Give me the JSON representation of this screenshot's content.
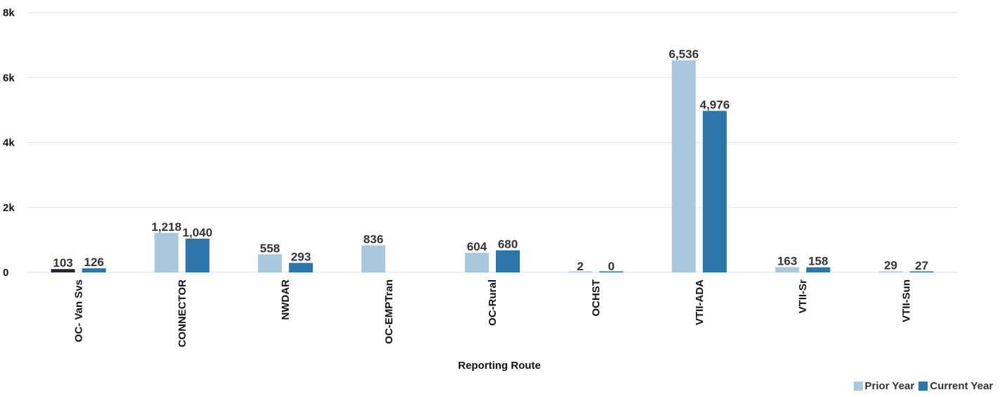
{
  "chart_data": {
    "type": "bar",
    "xlabel": "Reporting Route",
    "ylabel": "",
    "ylim": [
      0,
      8000
    ],
    "y_ticks": [
      0,
      2000,
      4000,
      6000,
      8000
    ],
    "y_tick_labels": [
      "0",
      "2k",
      "4k",
      "6k",
      "8k"
    ],
    "grid": true,
    "legend_position": "bottom-right",
    "categories": [
      "OC- Van Svs",
      "CONNECTOR",
      "NWDAR",
      "OC-EMPTran",
      "OC-Rural",
      "OCHST",
      "VTII-ADA",
      "VTII-Sr",
      "VTII-Sun"
    ],
    "series": [
      {
        "name": "Prior Year",
        "color": "#a9c8dd",
        "values": [
          103,
          1218,
          558,
          836,
          604,
          2,
          6536,
          163,
          29
        ],
        "labels": [
          "103",
          "1,218",
          "558",
          "836",
          "604",
          "2",
          "6,536",
          "163",
          "29"
        ]
      },
      {
        "name": "Current Year",
        "color": "#2b75aa",
        "values": [
          126,
          1040,
          293,
          null,
          680,
          0,
          4976,
          158,
          27
        ],
        "labels": [
          "126",
          "1,040",
          "293",
          "",
          "680",
          "0",
          "4,976",
          "158",
          "27"
        ]
      }
    ],
    "highlight_color": "#222733"
  }
}
